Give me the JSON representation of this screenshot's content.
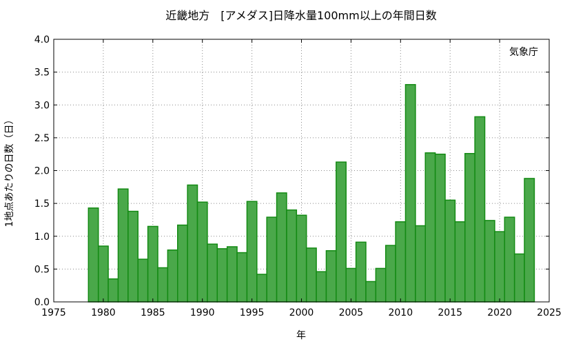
{
  "chart_data": {
    "type": "bar",
    "title": "近畿地方　[アメダス]日降水量100mm以上の年間日数",
    "xlabel": "年",
    "ylabel": "1地点あたりの日数（日）",
    "annotation": "気象庁",
    "xlim": [
      1975,
      2025
    ],
    "ylim": [
      0,
      4.0
    ],
    "xticks": [
      1975,
      1980,
      1985,
      1990,
      1995,
      2000,
      2005,
      2010,
      2015,
      2020,
      2025
    ],
    "yticks": [
      0.0,
      0.5,
      1.0,
      1.5,
      2.0,
      2.5,
      3.0,
      3.5,
      4.0
    ],
    "ytick_labels": [
      "0.0",
      "0.5",
      "1.0",
      "1.5",
      "2.0",
      "2.5",
      "3.0",
      "3.5",
      "4.0"
    ],
    "grid": true,
    "bar_color": "#4aa84a",
    "bar_edge_color": "#138a13",
    "categories": [
      1979,
      1980,
      1981,
      1982,
      1983,
      1984,
      1985,
      1986,
      1987,
      1988,
      1989,
      1990,
      1991,
      1992,
      1993,
      1994,
      1995,
      1996,
      1997,
      1998,
      1999,
      2000,
      2001,
      2002,
      2003,
      2004,
      2005,
      2006,
      2007,
      2008,
      2009,
      2010,
      2011,
      2012,
      2013,
      2014,
      2015,
      2016,
      2017,
      2018,
      2019,
      2020,
      2021,
      2022,
      2023
    ],
    "values": [
      1.43,
      0.85,
      0.35,
      1.72,
      1.38,
      0.65,
      1.15,
      0.52,
      0.79,
      1.17,
      1.78,
      1.52,
      0.88,
      0.81,
      0.84,
      0.75,
      1.53,
      0.42,
      1.29,
      1.66,
      1.4,
      1.32,
      0.82,
      0.46,
      0.78,
      2.13,
      0.51,
      0.91,
      0.31,
      0.51,
      0.86,
      1.22,
      3.31,
      1.16,
      2.27,
      2.25,
      1.55,
      1.22,
      2.26,
      2.82,
      1.24,
      1.07,
      1.29,
      0.73,
      1.88
    ]
  }
}
